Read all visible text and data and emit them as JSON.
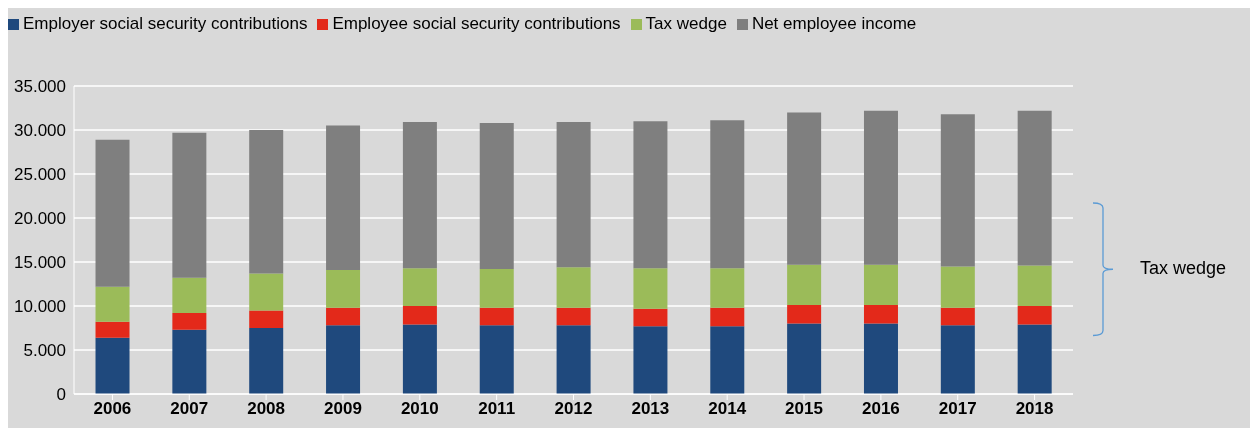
{
  "chart_data": {
    "type": "bar",
    "stacked": true,
    "categories": [
      "2006",
      "2007",
      "2008",
      "2009",
      "2010",
      "2011",
      "2012",
      "2013",
      "2014",
      "2015",
      "2016",
      "2017",
      "2018"
    ],
    "series": [
      {
        "name": "Employer social security contributions",
        "color": "#1f497d",
        "values": [
          6400,
          7300,
          7500,
          7800,
          7900,
          7800,
          7800,
          7700,
          7700,
          8000,
          8000,
          7800,
          7900
        ]
      },
      {
        "name": "Employee social security contributions",
        "color": "#e3291a",
        "values": [
          1800,
          1900,
          2000,
          2000,
          2100,
          2000,
          2000,
          2000,
          2100,
          2100,
          2100,
          2000,
          2100
        ]
      },
      {
        "name": "Tax wedge",
        "color": "#9bbb59",
        "values": [
          4000,
          4000,
          4200,
          4300,
          4300,
          4400,
          4600,
          4600,
          4500,
          4600,
          4600,
          4700,
          4600
        ]
      },
      {
        "name": "Net employee income",
        "color": "#7f7f7f",
        "values": [
          16700,
          16500,
          16300,
          16400,
          16600,
          16600,
          16500,
          16700,
          16800,
          17300,
          17500,
          17300,
          17600
        ]
      }
    ],
    "ylim": [
      0,
      35000
    ],
    "yticks": [
      {
        "value": 0,
        "label": "0"
      },
      {
        "value": 5000,
        "label": "5.000"
      },
      {
        "value": 10000,
        "label": "10.000"
      },
      {
        "value": 15000,
        "label": "15.000"
      },
      {
        "value": 20000,
        "label": "20.000"
      },
      {
        "value": 25000,
        "label": "25.000"
      },
      {
        "value": 30000,
        "label": "30.000"
      },
      {
        "value": 35000,
        "label": "35.000"
      }
    ],
    "grid": "y",
    "legend": "top left",
    "annotations": [
      "Tax wedge"
    ]
  }
}
